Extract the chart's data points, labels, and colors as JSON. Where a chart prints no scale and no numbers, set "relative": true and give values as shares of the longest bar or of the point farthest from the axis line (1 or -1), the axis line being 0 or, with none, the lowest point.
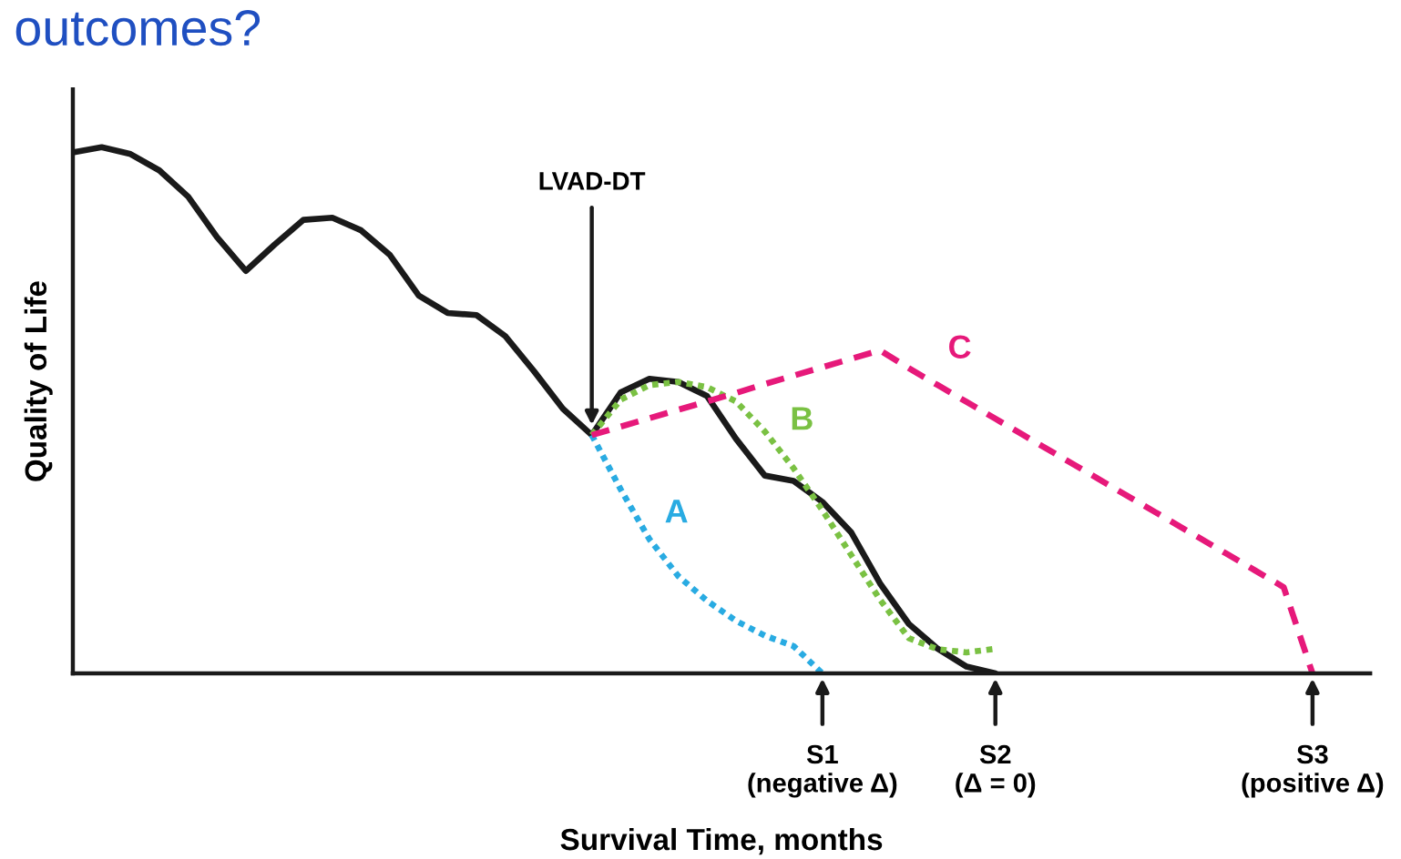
{
  "chart_data": {
    "type": "line",
    "title": "outcomes?",
    "xlabel": "Survival Time, months",
    "ylabel": "Quality of Life",
    "relative": true,
    "categories": [
      null,
      null,
      null,
      null,
      null,
      null,
      null,
      null,
      null,
      null,
      null,
      null,
      null,
      null,
      null,
      null,
      null,
      null,
      null,
      null,
      null,
      null,
      null,
      null,
      null,
      null,
      "S1\n(negative Δ)",
      null,
      null,
      null,
      null,
      null,
      "S2\n(Δ = 0)",
      null,
      null,
      null,
      null,
      null,
      null,
      null,
      null,
      null,
      null,
      "S3\n(positive Δ)",
      null
    ],
    "annotations": [
      "LVAD-DT"
    ],
    "series": [
      {
        "color": "#1a1a1a",
        "line_style": "solid",
        "values": [
          0.99,
          1,
          0.987,
          0.956,
          0.906,
          0.829,
          0.765,
          0.815,
          0.862,
          0.866,
          0.842,
          0.795,
          0.718,
          0.685,
          0.681,
          0.641,
          0.574,
          0.503,
          0.453,
          0.534,
          0.56,
          0.554,
          0.527,
          0.446,
          0.376,
          0.366,
          0.326,
          0.268,
          0.171,
          0.094,
          0.047,
          0.013,
          0,
          null,
          null,
          null,
          null,
          null,
          null,
          null,
          null,
          null,
          null,
          null,
          null
        ]
      },
      {
        "name": "A",
        "color": "#29abe2",
        "line_style": "dotted",
        "values": [
          null,
          null,
          null,
          null,
          null,
          null,
          null,
          null,
          null,
          null,
          null,
          null,
          null,
          null,
          null,
          null,
          null,
          null,
          0.453,
          0.35,
          0.255,
          0.185,
          0.138,
          0.1,
          0.072,
          0.052,
          0,
          null,
          null,
          null,
          null,
          null,
          null,
          null,
          null,
          null,
          null,
          null,
          null,
          null,
          null,
          null,
          null,
          null,
          null
        ]
      },
      {
        "name": "B",
        "color": "#7ac143",
        "line_style": "dotted",
        "values": [
          null,
          null,
          null,
          null,
          null,
          null,
          null,
          null,
          null,
          null,
          null,
          null,
          null,
          null,
          null,
          null,
          null,
          null,
          0.453,
          0.52,
          0.548,
          0.554,
          0.544,
          0.517,
          0.46,
          0.39,
          0.31,
          0.225,
          0.14,
          0.067,
          0.046,
          0.04,
          0.047,
          null,
          null,
          null,
          null,
          null,
          null,
          null,
          null,
          null,
          null,
          null,
          null
        ]
      },
      {
        "name": "C",
        "color": "#e6197a",
        "line_style": "dashed",
        "values": [
          null,
          null,
          null,
          null,
          null,
          null,
          null,
          null,
          null,
          null,
          null,
          null,
          null,
          null,
          null,
          null,
          null,
          null,
          0.453,
          0.469,
          0.485,
          0.501,
          0.517,
          0.533,
          0.55,
          0.566,
          0.582,
          0.598,
          0.614,
          0.58,
          0.548,
          0.516,
          0.484,
          0.452,
          0.42,
          0.388,
          0.356,
          0.324,
          0.292,
          0.26,
          0.228,
          0.196,
          0.164,
          0,
          null
        ]
      }
    ]
  }
}
